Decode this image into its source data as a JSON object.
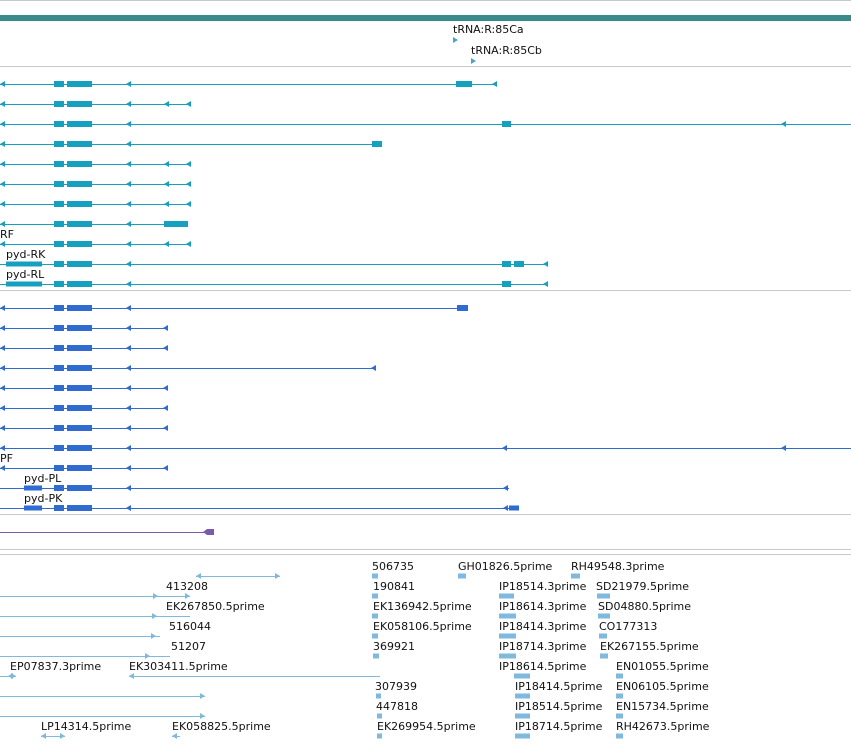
{
  "colors": {
    "trna": "#4aa3c8",
    "mrna_teal": "#16a0bf",
    "mrna_blue": "#2f6bd1",
    "ncrna": "#7a5ba8",
    "est": "#7fb9de",
    "divider": "#c8c8c8",
    "gene_bar": "#3a8a8a"
  },
  "trna_labels": [
    "tRNA:R:85Ca",
    "tRNA:R:85Cb"
  ],
  "teal_labels": [
    "RF",
    "pyd-RK",
    "pyd-RL"
  ],
  "blue_labels": [
    "PF",
    "pyd-PL",
    "pyd-PK"
  ],
  "est_labels": {
    "col1": [
      "EP07837.3prime",
      "LP14314.5prime"
    ],
    "col2": [
      "413208",
      "EK267850.5prime",
      "516044",
      "51207",
      "EK303411.5prime",
      "EK058825.5prime"
    ],
    "col3": [
      "506735",
      "190841",
      "EK136942.5prime",
      "EK058106.5prime",
      "369921",
      "307939",
      "447818",
      "EK269954.5prime"
    ],
    "col4": [
      "GH01826.5prime",
      "IP18514.3prime",
      "IP18614.3prime",
      "IP18414.3prime",
      "IP18714.3prime",
      "IP18614.5prime",
      "IP18414.5prime",
      "IP18514.5prime",
      "IP18714.5prime"
    ],
    "col5": [
      "RH49548.3prime",
      "SD21979.5prime",
      "SD04880.5prime",
      "CO177313",
      "EK267155.5prime",
      "EN01055.5prime",
      "EN06105.5prime",
      "EN15734.5prime",
      "RH42673.5prime"
    ]
  }
}
